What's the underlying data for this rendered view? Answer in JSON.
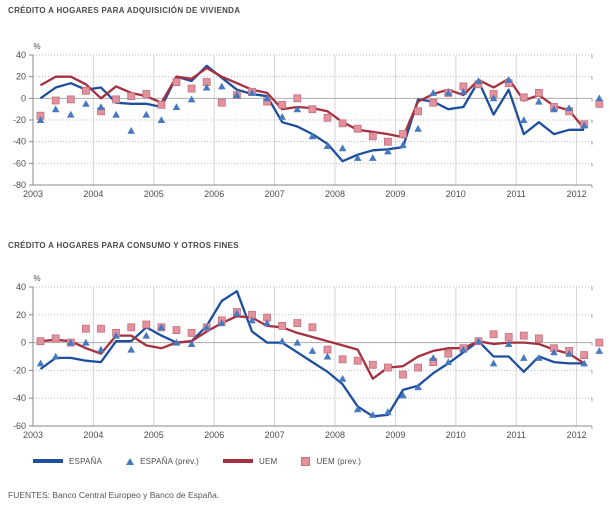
{
  "page": {
    "footer": "FUENTES: Banco Central Europeo y Banco de España."
  },
  "legend": {
    "items": [
      {
        "id": "espana",
        "swatch": "line",
        "color": "#1E4F9E",
        "label": "ESPAÑA"
      },
      {
        "id": "espana-prev",
        "swatch": "triangle",
        "color": "#4679C0",
        "label": "ESPAÑA (prev.)"
      },
      {
        "id": "uem",
        "swatch": "line",
        "color": "#A5303F",
        "label": "UEM"
      },
      {
        "id": "uem-prev",
        "swatch": "square",
        "color": "#E2919D",
        "label": "UEM (prev.)"
      }
    ]
  },
  "chart_data": [
    {
      "type": "line",
      "title": "CRÉDITO A HOGARES PARA ADQUISICIÓN DE VIVIENDA",
      "ylabel": "%",
      "xlabel": "",
      "ylim": [
        -80,
        40
      ],
      "yticks": [
        40,
        20,
        0,
        -20,
        -40,
        -60,
        -80
      ],
      "xticks": [
        2003,
        2004,
        2005,
        2006,
        2007,
        2008,
        2009,
        2010,
        2011,
        2012
      ],
      "grid": "dotted-horizontal, solid-vertical-years, solid-zero-line",
      "legend_position": "shared-bottom",
      "x_start": 2003.125,
      "x_step": 0.25,
      "series": [
        {
          "id": "espana",
          "name": "ESPAÑA",
          "type": "line",
          "color": "#1E4F9E",
          "values": [
            0,
            10,
            14,
            8,
            10,
            -4,
            -5,
            -5,
            -8,
            20,
            16,
            30,
            19,
            8,
            4,
            2,
            -22,
            -26,
            -33,
            -42,
            -58,
            -52,
            -48,
            -47,
            -45,
            -1,
            -3,
            -10,
            -8,
            16,
            -15,
            8,
            -33,
            -22,
            -33,
            -29,
            -29
          ]
        },
        {
          "id": "uem",
          "name": "UEM",
          "type": "line",
          "color": "#A5303F",
          "values": [
            12,
            20,
            20,
            13,
            0,
            11,
            5,
            2,
            -4,
            20,
            18,
            28,
            20,
            14,
            8,
            5,
            -10,
            -8,
            -9,
            -12,
            -22,
            -29,
            -31,
            -33,
            -36,
            -3,
            4,
            8,
            3,
            17,
            10,
            18,
            -2,
            3,
            -7,
            -11,
            -28
          ]
        },
        {
          "id": "uem-prev",
          "name": "UEM (prev.)",
          "type": "square",
          "color": "#E2919D",
          "stroke": "#C4717F",
          "values": [
            -16,
            -2,
            -1,
            7,
            -12,
            -1,
            2,
            4,
            -6,
            15,
            9,
            15,
            -4,
            3,
            6,
            -3,
            -6,
            0,
            -10,
            -18,
            -23,
            -28,
            -35,
            -40,
            -33,
            -12,
            -4,
            5,
            11,
            13,
            4,
            14,
            1,
            5,
            -8,
            -12,
            -24,
            -5
          ]
        },
        {
          "id": "espana-prev",
          "name": "ESPAÑA (prev.)",
          "type": "triangle",
          "color": "#4679C0",
          "values": [
            -20,
            -10,
            -15,
            -5,
            -8,
            -15,
            -30,
            -15,
            -20,
            -8,
            -1,
            10,
            11,
            3,
            5,
            0,
            -17,
            -10,
            -35,
            -44,
            -46,
            -55,
            -55,
            -49,
            -43,
            -28,
            5,
            5,
            6,
            16,
            0,
            17,
            -20,
            -3,
            -10,
            -9,
            -25,
            0
          ]
        }
      ]
    },
    {
      "type": "line",
      "title": "CRÉDITO A HOGARES PARA CONSUMO Y OTROS FINES",
      "ylabel": "%",
      "xlabel": "",
      "ylim": [
        -60,
        40
      ],
      "yticks": [
        40,
        20,
        0,
        -20,
        -40,
        -60
      ],
      "xticks": [
        2003,
        2004,
        2005,
        2006,
        2007,
        2008,
        2009,
        2010,
        2011,
        2012
      ],
      "grid": "dotted-horizontal, solid-vertical-years, solid-zero-line",
      "legend_position": "shared-bottom",
      "x_start": 2003.125,
      "x_step": 0.25,
      "series": [
        {
          "id": "espana",
          "name": "ESPAÑA",
          "type": "line",
          "color": "#1E4F9E",
          "values": [
            -19,
            -11,
            -11,
            -13,
            -14,
            1,
            1,
            11,
            5,
            0,
            1,
            12,
            30,
            37,
            8,
            0,
            0,
            -7,
            -14,
            -21,
            -30,
            -46,
            -53,
            -52,
            -34,
            -31,
            -22,
            -15,
            -7,
            1,
            -10,
            -10,
            -21,
            -10,
            -14,
            -15,
            -15
          ]
        },
        {
          "id": "uem",
          "name": "UEM",
          "type": "line",
          "color": "#A5303F",
          "values": [
            1,
            2,
            1,
            -4,
            -8,
            5,
            5,
            -2,
            -4,
            0,
            1,
            8,
            14,
            19,
            18,
            12,
            11,
            7,
            4,
            1,
            -2,
            -5,
            -26,
            -18,
            -17,
            -10,
            -6,
            -4,
            -4,
            1,
            -1,
            0,
            0,
            -1,
            -5,
            -8,
            -15
          ]
        },
        {
          "id": "uem-prev",
          "name": "UEM (prev.)",
          "type": "square",
          "color": "#E2919D",
          "stroke": "#C4717F",
          "values": [
            1,
            3,
            0,
            10,
            10,
            7,
            11,
            13,
            11,
            9,
            7,
            11,
            16,
            22,
            20,
            18,
            12,
            14,
            11,
            -5,
            -12,
            -13,
            -16,
            -18,
            -23,
            -18,
            -14,
            -8,
            -4,
            1,
            6,
            4,
            5,
            3,
            -4,
            -6,
            -9,
            0
          ]
        },
        {
          "id": "espana-prev",
          "name": "ESPAÑA (prev.)",
          "type": "triangle",
          "color": "#4679C0",
          "values": [
            -15,
            -10,
            0,
            0,
            -5,
            5,
            -5,
            5,
            11,
            0,
            -1,
            11,
            14,
            21,
            16,
            14,
            1,
            0,
            -6,
            -10,
            -26,
            -48,
            -52,
            -50,
            -38,
            -32,
            -11,
            -14,
            -5,
            1,
            -15,
            -1,
            -11,
            -11,
            -7,
            -8,
            -15,
            -6
          ]
        }
      ]
    }
  ]
}
